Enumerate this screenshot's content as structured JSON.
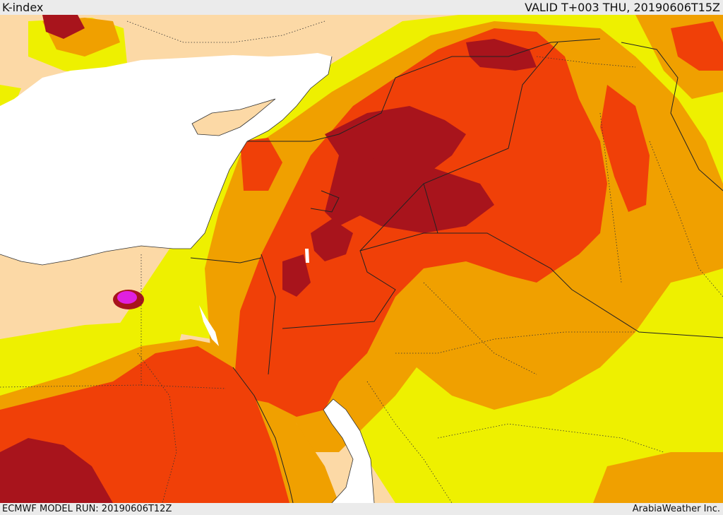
{
  "header": {
    "title": "K-index",
    "valid_time": "VALID T+003 THU, 20190606T15Z"
  },
  "footer": {
    "model_run": "ECMWF MODEL RUN: 20190606T12Z",
    "credit": "ArabiaWeather Inc."
  },
  "colors": {
    "sea": "#ffffff",
    "land": "#fcd9a6",
    "yellow": "#eef000",
    "orange": "#f0a000",
    "red_orange": "#f04008",
    "dark_red": "#a8141c",
    "magenta": "#e020e0",
    "border": "#222222"
  }
}
